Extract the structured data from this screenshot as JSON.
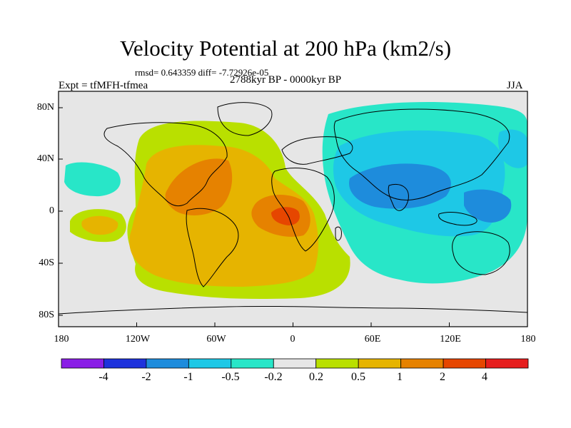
{
  "title": "Velocity Potential at 200 hPa (km2/s)",
  "stats": "rmsd= 0.643359 diff= -7.72926e-05",
  "expt": "Expt = tfMFH-tfmea",
  "period": "2788kyr BP - 0000kyr BP",
  "season": "JJA",
  "x_ticks": [
    "180",
    "120W",
    "60W",
    "0",
    "60E",
    "120E",
    "180"
  ],
  "y_ticks": [
    "80N",
    "40N",
    "0",
    "40S",
    "80S"
  ],
  "colorbar": {
    "labels": [
      "-4",
      "-2",
      "-1",
      "-0.5",
      "-0.2",
      "0.2",
      "0.5",
      "1",
      "2",
      "4"
    ],
    "colors": [
      "#8a1ee6",
      "#1e32dc",
      "#1e8cdc",
      "#1ec8e6",
      "#28e6c8",
      "#e6e6e6",
      "#b9e000",
      "#e6b400",
      "#e68200",
      "#e64600",
      "#e61e1e"
    ]
  }
}
